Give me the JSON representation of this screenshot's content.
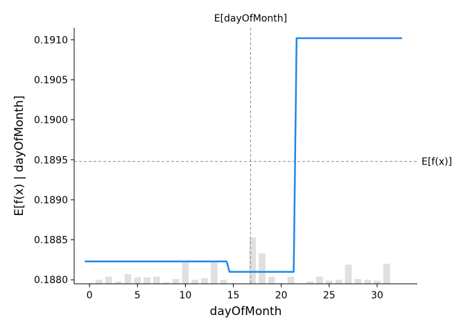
{
  "chart_data": {
    "type": "line",
    "xlabel": "dayOfMonth",
    "ylabel": "E[f(x) | dayOfMonth]",
    "xlim": [
      -1.6,
      34.2
    ],
    "ylim": [
      0.18795,
      0.19115
    ],
    "x_ticks": [
      0,
      5,
      10,
      15,
      20,
      25,
      30
    ],
    "y_ticks": [
      0.188,
      0.1885,
      0.189,
      0.1895,
      0.19,
      0.1905,
      0.191
    ],
    "x_tick_labels": [
      "0",
      "5",
      "10",
      "15",
      "20",
      "25",
      "30"
    ],
    "y_tick_labels": [
      "0.1880",
      "0.1885",
      "0.1890",
      "0.1895",
      "0.1900",
      "0.1905",
      "0.1910"
    ],
    "series": [
      {
        "color": "#1e88e5",
        "x": [
          -0.5,
          14.3,
          14.6,
          21.3,
          21.6,
          32.6
        ],
        "y": [
          0.18823,
          0.18823,
          0.1881,
          0.1881,
          0.19102,
          0.19102
        ]
      }
    ],
    "histogram": {
      "color": "#e0e0e0",
      "x": [
        1,
        2,
        3,
        4,
        5,
        6,
        7,
        8,
        9,
        10,
        11,
        12,
        13,
        14,
        15,
        16,
        17,
        18,
        19,
        20,
        21,
        22,
        23,
        24,
        25,
        26,
        27,
        28,
        29,
        30,
        31
      ],
      "y": [
        0.188,
        0.18804,
        0.18798,
        0.18807,
        0.18803,
        0.18803,
        0.18804,
        0.18797,
        0.18801,
        0.18823,
        0.188,
        0.18802,
        0.18823,
        0.188,
        0.18795,
        0.18793,
        0.18853,
        0.18833,
        0.18804,
        0.18796,
        0.18804,
        0.18794,
        0.18798,
        0.18804,
        0.18799,
        0.188,
        0.18819,
        0.18801,
        0.188,
        0.18799,
        0.1882
      ]
    },
    "reference_lines": {
      "expected_value": 0.18948,
      "expected_value_label": "E[f(x)]",
      "feature_mean": 16.8,
      "feature_mean_label": "E[dayOfMonth]"
    },
    "grid": false,
    "legend": "none"
  }
}
